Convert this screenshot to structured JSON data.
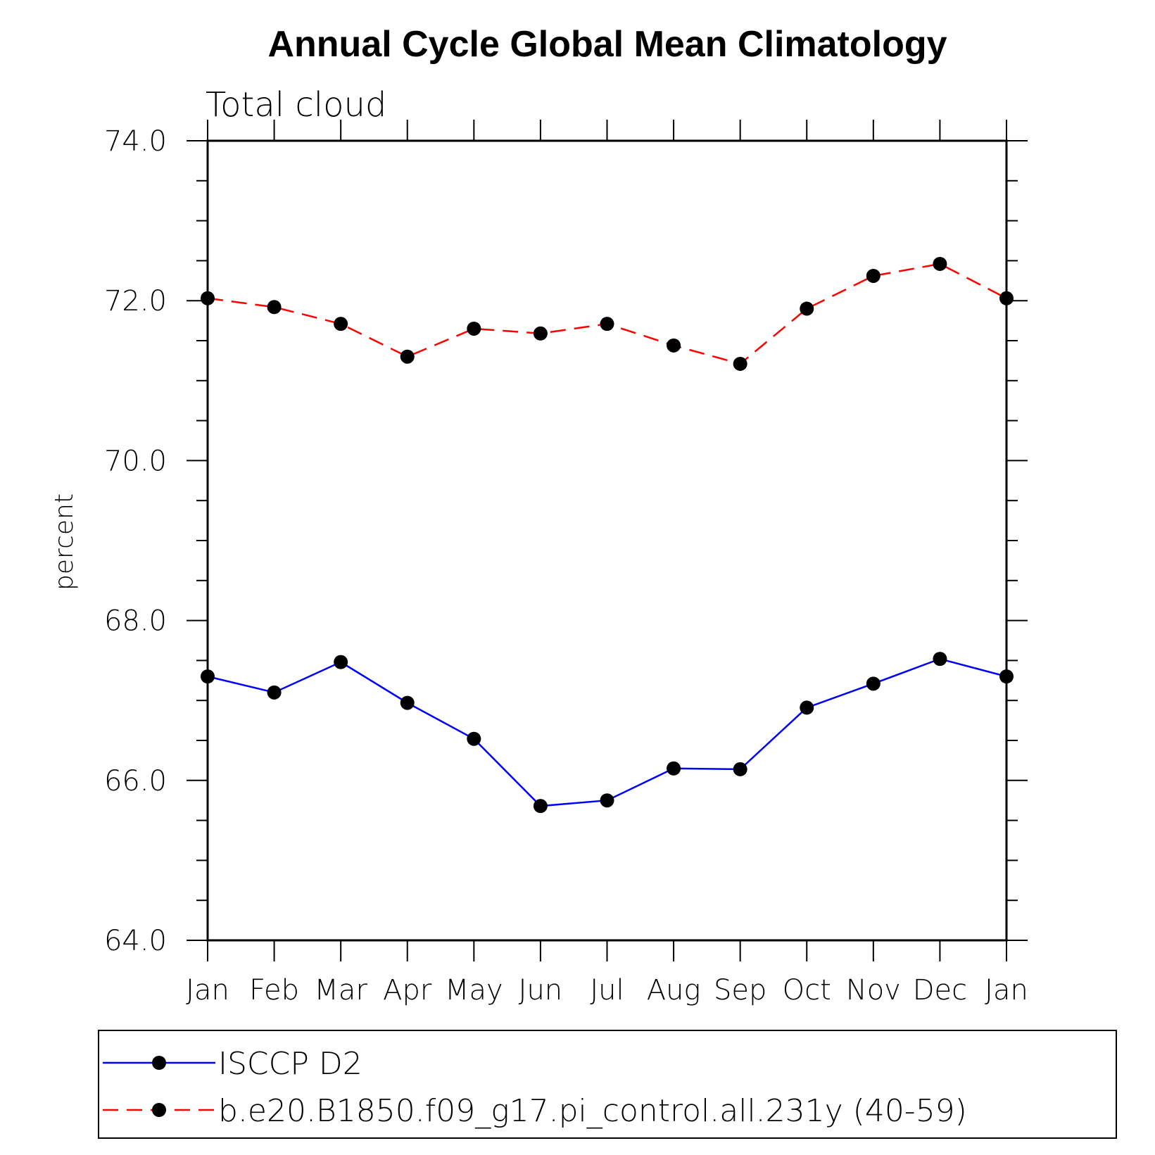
{
  "chart_data": {
    "type": "line",
    "title": "Annual Cycle Global Mean Climatology",
    "subtitle": "Total cloud",
    "xlabel": "",
    "ylabel": "percent",
    "ylim": [
      64.0,
      74.0
    ],
    "y_ticks": [
      "64.0",
      "66.0",
      "68.0",
      "70.0",
      "72.0",
      "74.0"
    ],
    "categories": [
      "Jan",
      "Feb",
      "Mar",
      "Apr",
      "May",
      "Jun",
      "Jul",
      "Aug",
      "Sep",
      "Oct",
      "Nov",
      "Dec",
      "Jan"
    ],
    "grid": false,
    "legend_position": "bottom",
    "series": [
      {
        "name": "ISCCP D2",
        "color": "#0000ff",
        "dash": "solid",
        "marker": "filled-circle",
        "values": [
          67.3,
          67.1,
          67.48,
          66.97,
          66.52,
          65.68,
          65.75,
          66.15,
          66.14,
          66.91,
          67.21,
          67.52,
          67.3
        ]
      },
      {
        "name": "b.e20.B1850.f09_g17.pi_control.all.231y (40-59)",
        "color": "#ff0000",
        "dash": "dashed",
        "marker": "filled-circle",
        "values": [
          72.03,
          71.92,
          71.71,
          71.3,
          71.65,
          71.59,
          71.71,
          71.44,
          71.21,
          71.9,
          72.31,
          72.46,
          72.03
        ]
      }
    ]
  }
}
